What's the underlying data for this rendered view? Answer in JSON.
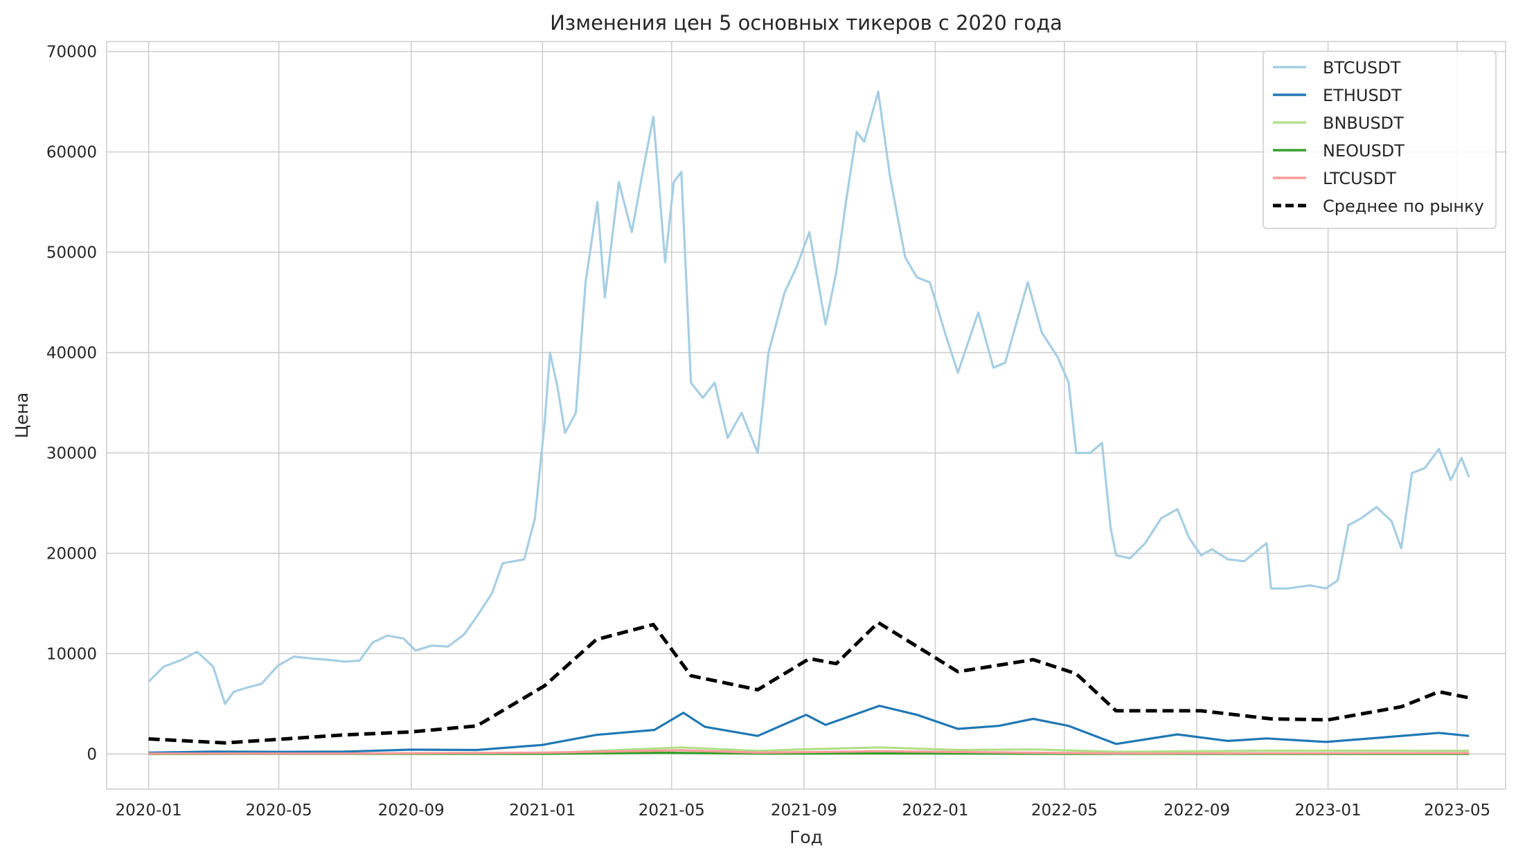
{
  "chart_data": {
    "type": "line",
    "title": "Изменения цен 5 основных тикеров с 2020 года",
    "xlabel": "Год",
    "ylabel": "Цена",
    "xlim": [
      "2019-11-23",
      "2023-06-15"
    ],
    "ylim": [
      -3500,
      71000
    ],
    "x_ticks": [
      "2020-01",
      "2020-05",
      "2020-09",
      "2021-01",
      "2021-05",
      "2021-09",
      "2022-01",
      "2022-05",
      "2022-09",
      "2023-01",
      "2023-05"
    ],
    "y_ticks": [
      0,
      10000,
      20000,
      30000,
      40000,
      50000,
      60000,
      70000
    ],
    "grid": true,
    "legend_position": "top-right",
    "series": [
      {
        "name": "BTCUSDT",
        "color": "#a6cee3",
        "style": "solid",
        "x": [
          "2020-01-01",
          "2020-01-15",
          "2020-02-01",
          "2020-02-15",
          "2020-03-01",
          "2020-03-12",
          "2020-03-20",
          "2020-04-01",
          "2020-04-15",
          "2020-04-30",
          "2020-05-15",
          "2020-06-01",
          "2020-06-15",
          "2020-07-01",
          "2020-07-15",
          "2020-07-27",
          "2020-08-10",
          "2020-08-25",
          "2020-09-05",
          "2020-09-20",
          "2020-10-05",
          "2020-10-20",
          "2020-11-01",
          "2020-11-15",
          "2020-11-25",
          "2020-12-05",
          "2020-12-15",
          "2020-12-25",
          "2021-01-03",
          "2021-01-08",
          "2021-01-15",
          "2021-01-22",
          "2021-02-01",
          "2021-02-10",
          "2021-02-21",
          "2021-02-28",
          "2021-03-13",
          "2021-03-25",
          "2021-04-05",
          "2021-04-14",
          "2021-04-25",
          "2021-05-03",
          "2021-05-10",
          "2021-05-19",
          "2021-05-30",
          "2021-06-10",
          "2021-06-22",
          "2021-07-05",
          "2021-07-20",
          "2021-07-30",
          "2021-08-14",
          "2021-08-25",
          "2021-09-06",
          "2021-09-21",
          "2021-10-01",
          "2021-10-10",
          "2021-10-20",
          "2021-10-27",
          "2021-11-09",
          "2021-11-20",
          "2021-12-04",
          "2021-12-15",
          "2021-12-27",
          "2022-01-10",
          "2022-01-22",
          "2022-02-10",
          "2022-02-24",
          "2022-03-07",
          "2022-03-28",
          "2022-04-10",
          "2022-04-25",
          "2022-05-05",
          "2022-05-12",
          "2022-05-25",
          "2022-06-05",
          "2022-06-13",
          "2022-06-18",
          "2022-07-01",
          "2022-07-15",
          "2022-07-30",
          "2022-08-14",
          "2022-08-25",
          "2022-09-05",
          "2022-09-15",
          "2022-09-30",
          "2022-10-15",
          "2022-11-05",
          "2022-11-09",
          "2022-11-25",
          "2022-12-15",
          "2022-12-30",
          "2023-01-10",
          "2023-01-20",
          "2023-02-01",
          "2023-02-15",
          "2023-03-01",
          "2023-03-10",
          "2023-03-20",
          "2023-04-01",
          "2023-04-14",
          "2023-04-25",
          "2023-05-05",
          "2023-05-12"
        ],
        "values": [
          7200,
          8700,
          9400,
          10200,
          8700,
          5000,
          6200,
          6600,
          7000,
          8800,
          9700,
          9500,
          9400,
          9200,
          9300,
          11100,
          11800,
          11500,
          10300,
          10800,
          10700,
          11900,
          13700,
          16000,
          19000,
          19200,
          19400,
          23500,
          33000,
          40000,
          36500,
          32000,
          34000,
          47000,
          55000,
          45500,
          57000,
          52000,
          58500,
          63500,
          49000,
          57000,
          58000,
          37000,
          35500,
          37000,
          31500,
          34000,
          30000,
          40000,
          46000,
          48500,
          52000,
          42800,
          48000,
          55000,
          62000,
          61000,
          66000,
          57500,
          49500,
          47500,
          47000,
          42000,
          38000,
          44000,
          38500,
          39000,
          47000,
          42000,
          39500,
          37000,
          30000,
          30000,
          31000,
          22500,
          19800,
          19500,
          21000,
          23500,
          24400,
          21500,
          19800,
          20400,
          19400,
          19200,
          21000,
          16500,
          16500,
          16800,
          16500,
          17300,
          22800,
          23500,
          24600,
          23200,
          20500,
          28000,
          28500,
          30400,
          27300,
          29500,
          27600
        ]
      },
      {
        "name": "ETHUSDT",
        "color": "#1f78b4",
        "style": "solid",
        "x": [
          "2020-01-01",
          "2020-03-01",
          "2020-05-01",
          "2020-07-01",
          "2020-09-01",
          "2020-11-01",
          "2021-01-01",
          "2021-02-20",
          "2021-04-15",
          "2021-05-12",
          "2021-06-01",
          "2021-07-20",
          "2021-09-03",
          "2021-09-21",
          "2021-11-10",
          "2021-12-15",
          "2022-01-22",
          "2022-03-01",
          "2022-04-02",
          "2022-05-05",
          "2022-06-18",
          "2022-08-14",
          "2022-09-30",
          "2022-11-05",
          "2022-12-30",
          "2023-02-15",
          "2023-04-14",
          "2023-05-12"
        ],
        "values": [
          130,
          230,
          210,
          230,
          430,
          400,
          900,
          1900,
          2400,
          4100,
          2700,
          1800,
          3900,
          2900,
          4800,
          3900,
          2500,
          2800,
          3500,
          2800,
          1000,
          1950,
          1300,
          1550,
          1200,
          1600,
          2100,
          1800
        ]
      },
      {
        "name": "BNBUSDT",
        "color": "#b2df8a",
        "style": "solid",
        "x": [
          "2020-01-01",
          "2020-07-01",
          "2021-01-01",
          "2021-02-20",
          "2021-05-10",
          "2021-07-20",
          "2021-09-06",
          "2021-11-10",
          "2022-01-22",
          "2022-04-02",
          "2022-06-18",
          "2022-11-05",
          "2023-05-12"
        ],
        "values": [
          14,
          17,
          40,
          300,
          650,
          300,
          470,
          650,
          400,
          450,
          220,
          330,
          320
        ]
      },
      {
        "name": "NEOUSDT",
        "color": "#33a02c",
        "style": "solid",
        "x": [
          "2020-01-01",
          "2020-08-01",
          "2021-01-01",
          "2021-04-25",
          "2021-07-20",
          "2021-11-10",
          "2022-05-05",
          "2023-05-12"
        ],
        "values": [
          9,
          15,
          15,
          120,
          35,
          50,
          12,
          11
        ]
      },
      {
        "name": "LTCUSDT",
        "color": "#fb9a99",
        "style": "solid",
        "x": [
          "2020-01-01",
          "2020-07-01",
          "2021-01-01",
          "2021-05-10",
          "2021-07-20",
          "2021-11-10",
          "2022-04-02",
          "2022-06-18",
          "2023-05-12"
        ],
        "values": [
          42,
          45,
          130,
          370,
          130,
          270,
          120,
          50,
          90
        ]
      },
      {
        "name": "Среднее по рынку",
        "color": "#000000",
        "style": "dashed",
        "x": [
          "2020-01-01",
          "2020-03-12",
          "2020-07-01",
          "2020-09-01",
          "2020-11-01",
          "2021-01-03",
          "2021-02-20",
          "2021-04-14",
          "2021-05-19",
          "2021-07-20",
          "2021-09-06",
          "2021-10-01",
          "2021-11-09",
          "2022-01-22",
          "2022-04-02",
          "2022-05-12",
          "2022-06-18",
          "2022-09-05",
          "2022-11-09",
          "2023-01-01",
          "2023-03-10",
          "2023-04-14",
          "2023-05-12"
        ],
        "values": [
          1500,
          1100,
          1900,
          2200,
          2800,
          6800,
          11400,
          12900,
          7800,
          6400,
          9500,
          9000,
          13100,
          8200,
          9400,
          8000,
          4300,
          4300,
          3500,
          3400,
          4700,
          6200,
          5600
        ]
      }
    ]
  }
}
